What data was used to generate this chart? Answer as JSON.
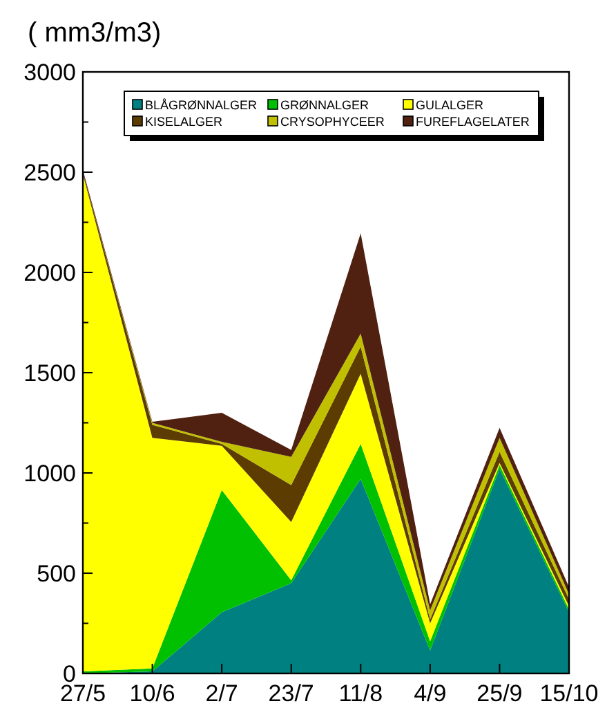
{
  "chart_data": {
    "type": "area",
    "stacked": true,
    "ylabel": "( mm3/m3)",
    "categories": [
      "27/5",
      "10/6",
      "2/7",
      "23/7",
      "11/8",
      "4/9",
      "25/9",
      "15/10"
    ],
    "series": [
      {
        "name": "BLÅGRØNNALGER",
        "color": "#008080",
        "values": [
          0,
          10,
          305,
          450,
          970,
          115,
          1020,
          305
        ]
      },
      {
        "name": "GRØNNALGER",
        "color": "#00c000",
        "values": [
          10,
          15,
          610,
          15,
          175,
          45,
          20,
          15
        ]
      },
      {
        "name": "GULALGER",
        "color": "#ffff00",
        "values": [
          2480,
          1150,
          220,
          290,
          350,
          90,
          10,
          15
        ]
      },
      {
        "name": "KISELALGER",
        "color": "#5c3c00",
        "values": [
          10,
          65,
          10,
          185,
          135,
          20,
          55,
          35
        ]
      },
      {
        "name": "CRYSOPHYCEER",
        "color": "#c0c000",
        "values": [
          0,
          10,
          10,
          140,
          65,
          45,
          70,
          25
        ]
      },
      {
        "name": "FUREFLAGELATER",
        "color": "#502010",
        "values": [
          10,
          5,
          145,
          35,
          500,
          30,
          50,
          35
        ]
      }
    ],
    "ylim": [
      0,
      3000
    ],
    "yticks": [
      0,
      {
        "value": 250,
        "label": null
      },
      500,
      {
        "value": 750,
        "label": null
      },
      1000,
      {
        "value": 1250,
        "label": null
      },
      1500,
      {
        "value": 1750,
        "label": null
      },
      2000,
      {
        "value": 2250,
        "label": null
      },
      2500,
      {
        "value": 2750,
        "label": null
      },
      3000
    ],
    "legend": "top",
    "grid": false
  }
}
